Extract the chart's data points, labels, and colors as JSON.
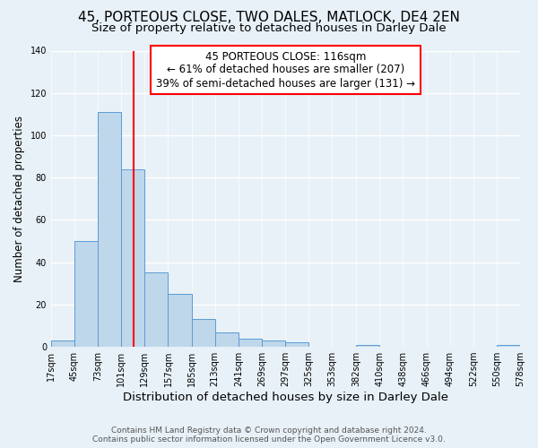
{
  "title": "45, PORTEOUS CLOSE, TWO DALES, MATLOCK, DE4 2EN",
  "subtitle": "Size of property relative to detached houses in Darley Dale",
  "xlabel": "Distribution of detached houses by size in Darley Dale",
  "ylabel": "Number of detached properties",
  "footer_line1": "Contains HM Land Registry data © Crown copyright and database right 2024.",
  "footer_line2": "Contains public sector information licensed under the Open Government Licence v3.0.",
  "bin_edges": [
    17,
    45,
    73,
    101,
    129,
    157,
    185,
    213,
    241,
    269,
    297,
    325,
    353,
    382,
    410,
    438,
    466,
    494,
    522,
    550,
    578
  ],
  "bar_heights": [
    3,
    50,
    111,
    84,
    35,
    25,
    13,
    7,
    4,
    3,
    2,
    0,
    0,
    1,
    0,
    0,
    0,
    0,
    0,
    1
  ],
  "bar_color": "#bfd7ea",
  "bar_edge_color": "#5b9bd5",
  "reference_line_x": 116,
  "reference_line_color": "red",
  "annotation_line1": "45 PORTEOUS CLOSE: 116sqm",
  "annotation_line2": "← 61% of detached houses are smaller (207)",
  "annotation_line3": "39% of semi-detached houses are larger (131) →",
  "annotation_box_color": "white",
  "annotation_box_edge_color": "red",
  "ylim": [
    0,
    140
  ],
  "yticks": [
    0,
    20,
    40,
    60,
    80,
    100,
    120,
    140
  ],
  "tick_labels": [
    "17sqm",
    "45sqm",
    "73sqm",
    "101sqm",
    "129sqm",
    "157sqm",
    "185sqm",
    "213sqm",
    "241sqm",
    "269sqm",
    "297sqm",
    "325sqm",
    "353sqm",
    "382sqm",
    "410sqm",
    "438sqm",
    "466sqm",
    "494sqm",
    "522sqm",
    "550sqm",
    "578sqm"
  ],
  "background_color": "#e8f1f8",
  "grid_color": "#ffffff",
  "title_fontsize": 11,
  "subtitle_fontsize": 9.5,
  "xlabel_fontsize": 9.5,
  "ylabel_fontsize": 8.5,
  "footer_fontsize": 6.5,
  "tick_fontsize": 7,
  "annotation_fontsize": 8.5
}
